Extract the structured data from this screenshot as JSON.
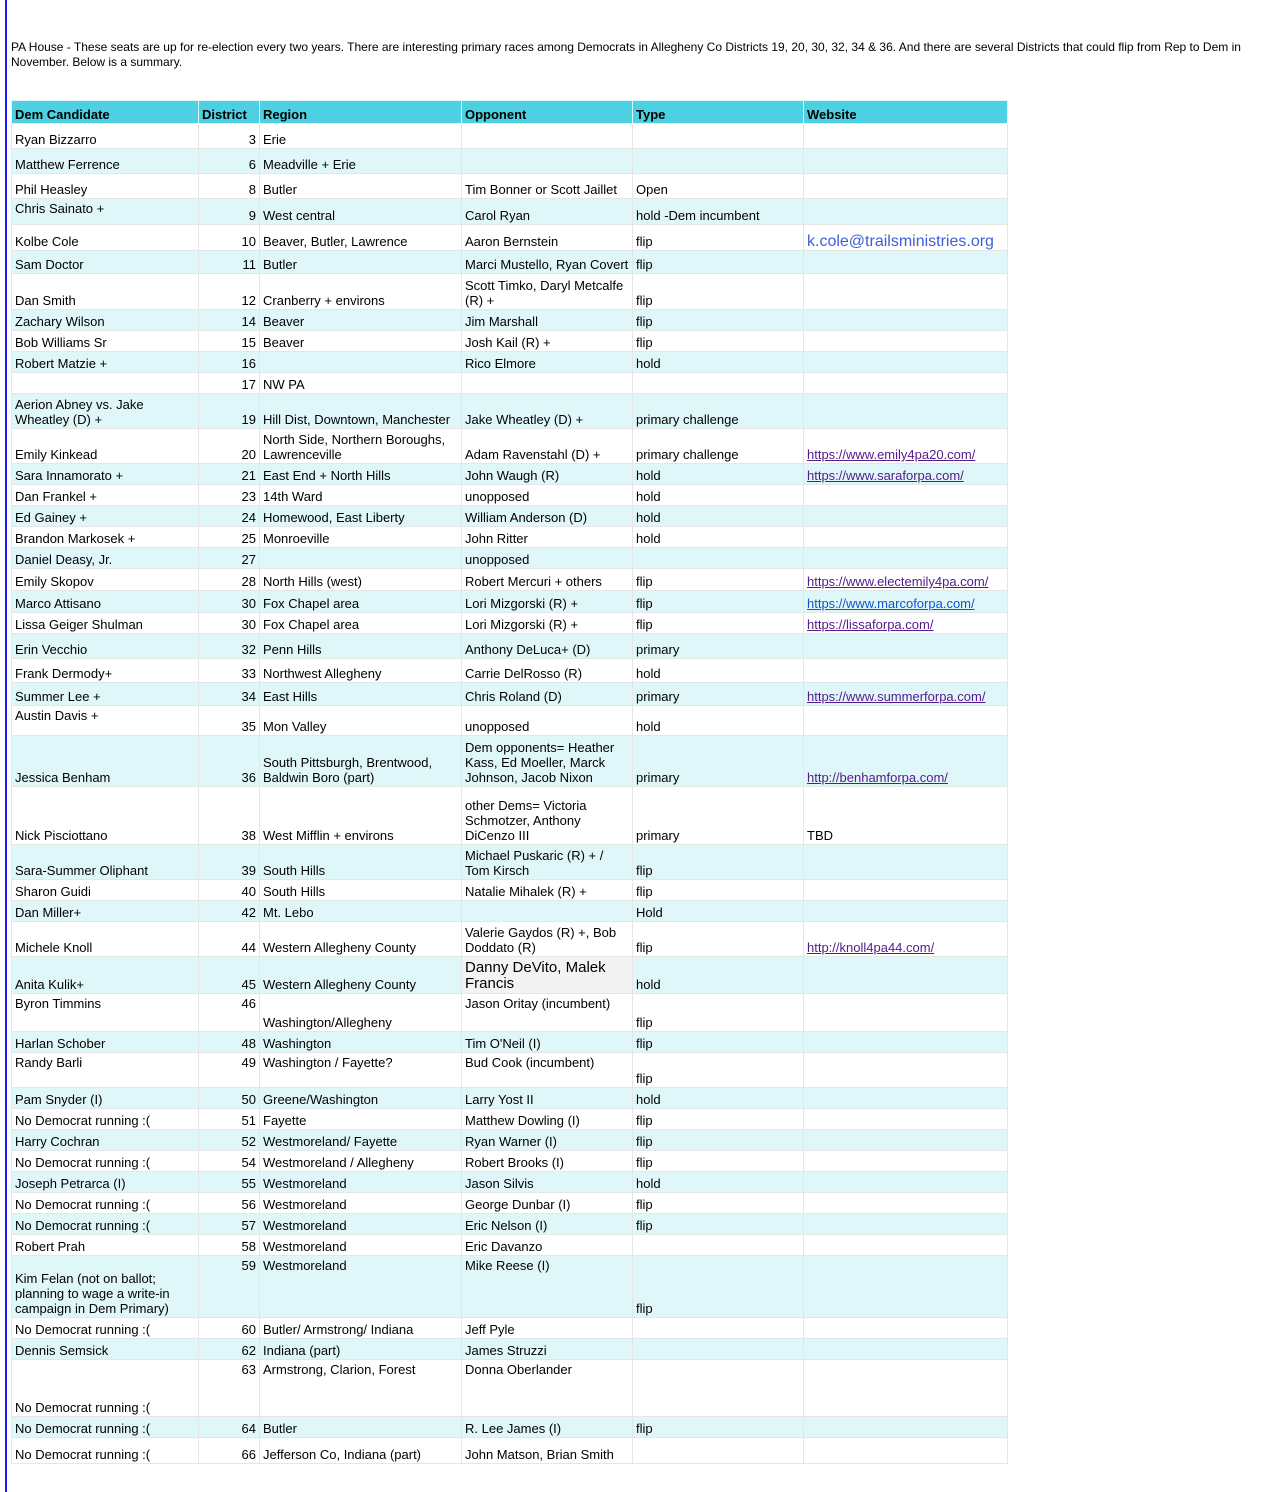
{
  "intro": "PA House - These seats are up for re-election every two years.  There are interesting primary races among Democrats in Allegheny Co Districts 19, 20, 30, 32, 34 & 36.  And there are several Districts that could flip from Rep to Dem in November.  Below is a summary.",
  "colors": {
    "header_bg": "#4dd0e1",
    "alt_row_bg": "#e0f7fa",
    "visited_link": "#551a8b",
    "link": "#1155cc",
    "email_link": "#3c5fd8",
    "left_border": "#1a1aff"
  },
  "columns": [
    "Dem Candidate",
    "District",
    "Region",
    "Opponent",
    "Type",
    "Website"
  ],
  "unvisited_links": [
    "https://www.marcoforpa.com/",
    "k.cole@trailsministries.org"
  ],
  "rows": [
    [
      "Ryan Bizzarro",
      "3",
      "Erie",
      "",
      "",
      ""
    ],
    [
      "Matthew Ferrence",
      "6",
      "Meadville + Erie",
      "",
      "",
      ""
    ],
    [
      "Phil Heasley",
      "8",
      "Butler",
      "Tim Bonner or Scott Jaillet",
      "Open",
      ""
    ],
    [
      "Chris Sainato +",
      "9",
      "West central",
      "Carol Ryan",
      "hold -Dem incumbent",
      ""
    ],
    [
      "Kolbe Cole",
      "10",
      "Beaver, Butler, Lawrence",
      "Aaron Bernstein",
      "flip",
      "k.cole@trailsministries.org"
    ],
    [
      "Sam Doctor",
      "11",
      "Butler",
      "Marci Mustello, Ryan Covert",
      "flip",
      ""
    ],
    [
      "Dan Smith",
      "12",
      "Cranberry + environs",
      "Scott Timko, Daryl Metcalfe (R) +",
      "flip",
      ""
    ],
    [
      "Zachary Wilson",
      "14",
      "Beaver",
      "Jim Marshall",
      "flip",
      ""
    ],
    [
      "Bob Williams Sr",
      "15",
      "Beaver",
      "Josh Kail (R) +",
      "flip",
      ""
    ],
    [
      "Robert Matzie +",
      "16",
      "",
      "Rico Elmore",
      "hold",
      ""
    ],
    [
      "",
      "17",
      "NW PA",
      "",
      "",
      ""
    ],
    [
      "Aerion Abney vs. Jake Wheatley (D) +",
      "19",
      "Hill Dist, Downtown, Manchester",
      "Jake Wheatley (D) +",
      "primary challenge",
      ""
    ],
    [
      "Emily Kinkead",
      "20",
      "North Side, Northern Boroughs, Lawrenceville",
      "Adam Ravenstahl (D) +",
      "primary challenge",
      "https://www.emily4pa20.com/"
    ],
    [
      "Sara Innamorato +",
      "21",
      "East End + North Hills",
      "John Waugh (R)",
      "hold",
      "https://www.saraforpa.com/"
    ],
    [
      "Dan Frankel +",
      "23",
      "14th Ward",
      "unopposed",
      "hold",
      ""
    ],
    [
      "Ed Gainey +",
      "24",
      "Homewood, East Liberty",
      "William Anderson (D)",
      "hold",
      ""
    ],
    [
      "Brandon Markosek +",
      "25",
      "Monroeville",
      "John Ritter",
      "hold",
      ""
    ],
    [
      "Daniel Deasy, Jr.",
      "27",
      "",
      "unopposed",
      "",
      ""
    ],
    [
      "Emily Skopov",
      "28",
      "North Hills (west)",
      "Robert Mercuri + others",
      "flip",
      "https://www.electemily4pa.com/"
    ],
    [
      "Marco Attisano",
      "30",
      "Fox Chapel area",
      "Lori Mizgorski (R) +",
      "flip",
      "https://www.marcoforpa.com/"
    ],
    [
      "Lissa Geiger Shulman",
      "30",
      "Fox Chapel area",
      "Lori Mizgorski (R) +",
      "flip",
      "https://lissaforpa.com/"
    ],
    [
      "Erin Vecchio",
      "32",
      "Penn Hills",
      "Anthony DeLuca+ (D)",
      "primary",
      ""
    ],
    [
      "Frank Dermody+",
      "33",
      "Northwest Allegheny",
      "Carrie DelRosso (R)",
      "hold",
      ""
    ],
    [
      "Summer Lee +",
      "34",
      "East Hills",
      "Chris Roland (D)",
      "primary",
      "https://www.summerforpa.com/"
    ],
    [
      "Austin Davis +",
      "35",
      "Mon Valley",
      "unopposed",
      "hold",
      ""
    ],
    [
      "Jessica Benham",
      "36",
      "South Pittsburgh, Brentwood, Baldwin Boro (part)",
      "Dem opponents= Heather Kass, Ed Moeller, Marck Johnson, Jacob Nixon",
      "primary",
      "http://benhamforpa.com/"
    ],
    [
      "Nick Pisciottano",
      "38",
      "West Mifflin + environs",
      "other Dems= Victoria Schmotzer, Anthony DiCenzo III",
      "primary",
      "TBD"
    ],
    [
      "Sara-Summer Oliphant",
      "39",
      "South Hills",
      "Michael Puskaric (R) + / Tom Kirsch",
      "flip",
      ""
    ],
    [
      "Sharon Guidi",
      "40",
      "South Hills",
      "Natalie Mihalek (R) +",
      "flip",
      ""
    ],
    [
      "Dan Miller+",
      "42",
      "Mt. Lebo",
      "",
      "Hold",
      ""
    ],
    [
      "Michele Knoll",
      "44",
      "Western Allegheny County",
      "Valerie Gaydos (R) +, Bob Doddato (R)",
      "flip",
      "http://knoll4pa44.com/"
    ],
    [
      "Anita Kulik+",
      "45",
      "Western Allegheny County",
      "Danny DeVito, Malek Francis",
      "hold",
      ""
    ],
    [
      "Byron Timmins",
      "46",
      "Washington/Allegheny",
      "Jason Oritay (incumbent)",
      "flip",
      ""
    ],
    [
      "Harlan Schober",
      "48",
      "Washington",
      "Tim O'Neil (I)",
      "flip",
      ""
    ],
    [
      "Randy Barli",
      "49",
      "Washington / Fayette?",
      "Bud Cook (incumbent)",
      "flip",
      ""
    ],
    [
      "Pam Snyder (I)",
      "50",
      "Greene/Washington",
      "Larry Yost II",
      "hold",
      ""
    ],
    [
      "No Democrat running :(",
      "51",
      "Fayette",
      "Matthew Dowling (I)",
      "flip",
      ""
    ],
    [
      "Harry Cochran",
      "52",
      "Westmoreland/ Fayette",
      "Ryan Warner (I)",
      "flip",
      ""
    ],
    [
      "No Democrat running :(",
      "54",
      "Westmoreland / Allegheny",
      "Robert Brooks (I)",
      "flip",
      ""
    ],
    [
      "Joseph Petrarca (I)",
      "55",
      "Westmoreland",
      "Jason Silvis",
      "hold",
      ""
    ],
    [
      "No Democrat running :(",
      "56",
      "Westmoreland",
      "George Dunbar (I)",
      "flip",
      ""
    ],
    [
      "No Democrat running :(",
      "57",
      "Westmoreland",
      "Eric Nelson (I)",
      "flip",
      ""
    ],
    [
      "Robert Prah",
      "58",
      "Westmoreland",
      "Eric Davanzo",
      "",
      ""
    ],
    [
      "Kim Felan (not on ballot; planning to wage a write-in campaign in Dem Primary)",
      "59",
      "Westmoreland",
      "Mike Reese (I)",
      "flip",
      ""
    ],
    [
      "No Democrat running :(",
      "60",
      "Butler/ Armstrong/ Indiana",
      "Jeff Pyle",
      "",
      ""
    ],
    [
      "Dennis Semsick",
      "62",
      "Indiana (part)",
      "James Struzzi",
      "",
      ""
    ],
    [
      "No Democrat running :(",
      "63",
      "Armstrong, Clarion, Forest",
      "Donna Oberlander",
      "",
      ""
    ],
    [
      "No Democrat running :(",
      "64",
      "Butler",
      "R. Lee James (I)",
      "flip",
      ""
    ],
    [
      "No Democrat running :(",
      "66",
      "Jefferson Co, Indiana (part)",
      "John Matson, Brian Smith",
      "",
      ""
    ]
  ]
}
